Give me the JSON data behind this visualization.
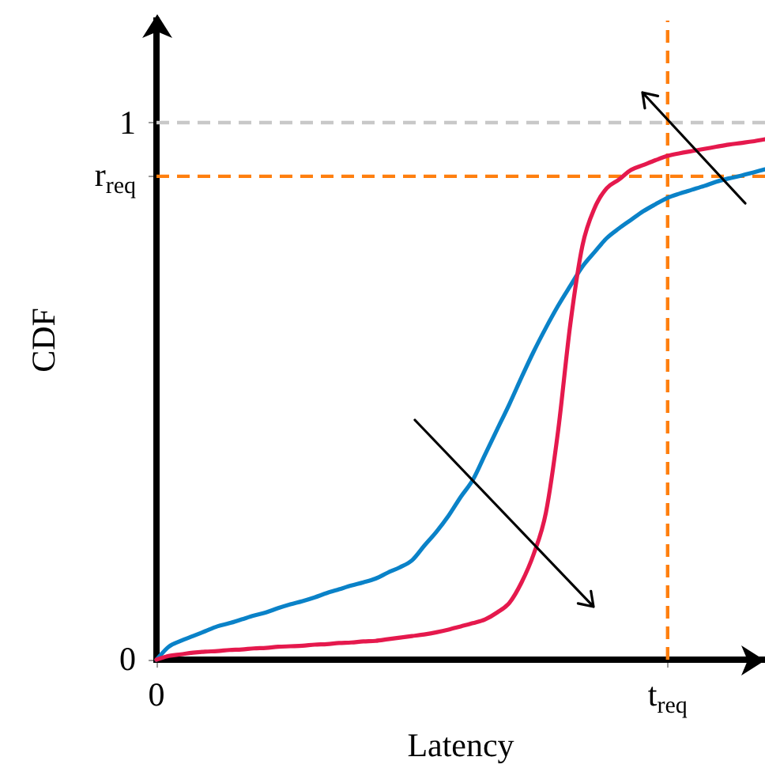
{
  "chart_data": {
    "type": "line",
    "xlabel": "Latency",
    "ylabel": "CDF",
    "categories": [
      "0",
      null,
      null,
      null,
      null,
      null,
      null,
      null,
      null,
      null,
      null,
      null,
      null,
      null,
      null,
      null,
      null,
      null,
      null,
      null,
      null,
      null,
      null,
      null,
      null,
      null,
      null,
      null,
      null,
      null,
      null,
      null,
      null,
      null,
      null,
      null,
      null,
      null,
      null,
      null,
      null,
      null,
      "t$_{req}$",
      null,
      null,
      null,
      null,
      null,
      null,
      null,
      null
    ],
    "ylim": [
      0,
      1.19
    ],
    "yticks": [
      0,
      {
        "value": 0.9,
        "label": "r$_{req}$"
      },
      1
    ],
    "series": [
      {
        "color": "#0a82c8",
        "values": [
          0,
          0.024,
          0.035,
          0.044,
          0.053,
          0.062,
          0.068,
          0.075,
          0.082,
          0.088,
          0.096,
          0.103,
          0.109,
          0.116,
          0.124,
          0.131,
          0.138,
          0.144,
          0.151,
          0.162,
          0.172,
          0.185,
          0.212,
          0.238,
          0.268,
          0.303,
          0.335,
          0.382,
          0.429,
          0.476,
          0.526,
          0.574,
          0.618,
          0.659,
          0.696,
          0.732,
          0.759,
          0.785,
          0.803,
          0.819,
          0.835,
          0.848,
          0.86,
          0.868,
          0.875,
          0.882,
          0.89,
          0.896,
          0.901,
          0.907,
          0.913
        ]
      },
      {
        "color": "#e5194d",
        "values": [
          0,
          0.007,
          0.01,
          0.013,
          0.015,
          0.016,
          0.018,
          0.019,
          0.021,
          0.022,
          0.024,
          0.025,
          0.026,
          0.028,
          0.029,
          0.031,
          0.032,
          0.034,
          0.035,
          0.038,
          0.041,
          0.044,
          0.047,
          0.051,
          0.056,
          0.062,
          0.068,
          0.075,
          0.088,
          0.106,
          0.144,
          0.197,
          0.274,
          0.426,
          0.624,
          0.771,
          0.841,
          0.878,
          0.894,
          0.912,
          0.921,
          0.93,
          0.938,
          0.943,
          0.947,
          0.951,
          0.955,
          0.959,
          0.962,
          0.965,
          0.969
        ]
      }
    ],
    "ref_lines": [
      {
        "axis": "y",
        "value": 1,
        "color": "#c8c8c8",
        "line_style": "dashed"
      },
      {
        "axis": "y",
        "value": 0.9,
        "color": "#ff7f0e",
        "line_style": "dashed"
      },
      {
        "axis": "x",
        "value": "t$_{req}$",
        "color": "#ff7f0e",
        "line_style": "dashed"
      }
    ]
  }
}
